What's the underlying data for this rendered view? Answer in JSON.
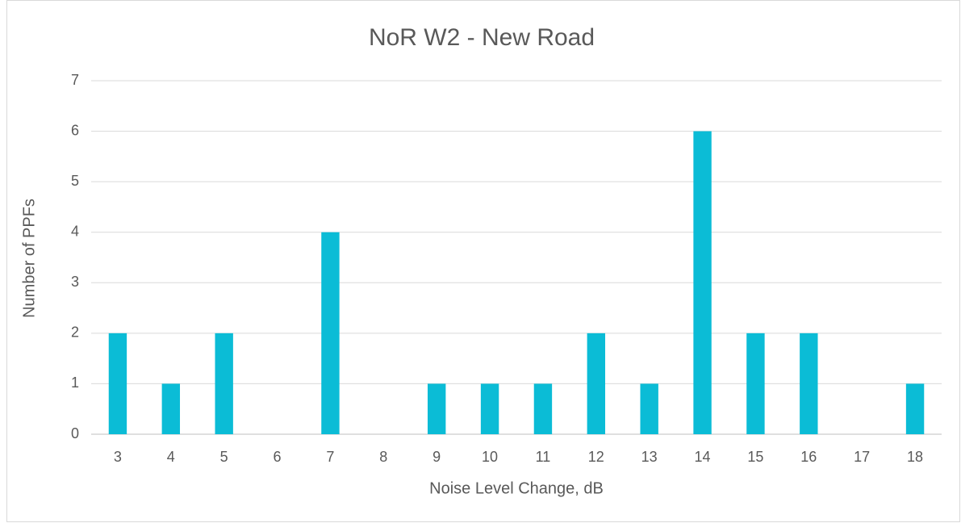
{
  "chart_data": {
    "type": "bar",
    "title": "NoR W2 - New Road",
    "x_label": "Noise Level Change, dB",
    "y_label": "Number of PPFs",
    "categories": [
      "3",
      "4",
      "5",
      "6",
      "7",
      "8",
      "9",
      "10",
      "11",
      "12",
      "13",
      "14",
      "15",
      "16",
      "17",
      "18"
    ],
    "values": [
      2,
      1,
      2,
      0,
      4,
      0,
      1,
      1,
      1,
      2,
      1,
      6,
      2,
      2,
      0,
      1
    ],
    "color": "#0bbcd6",
    "ylim": [
      0,
      7
    ],
    "yticks": [
      0,
      1,
      2,
      3,
      4,
      5,
      6,
      7
    ],
    "grid": true
  }
}
